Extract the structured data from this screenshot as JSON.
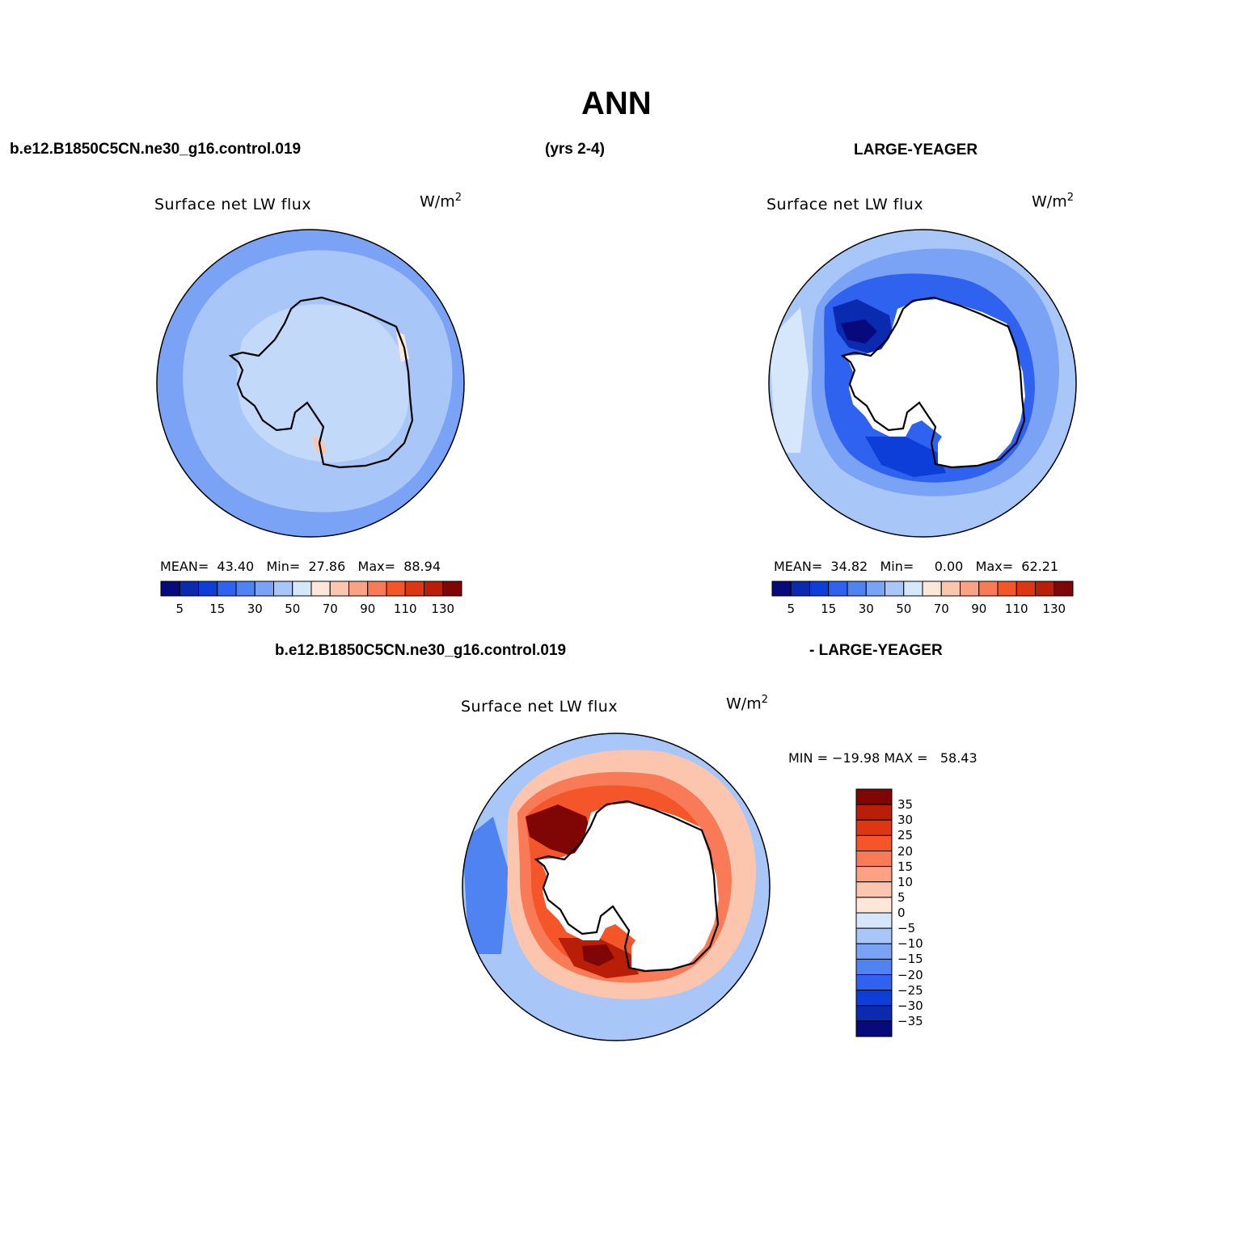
{
  "page": {
    "title": "ANN",
    "case_name": "b.e12.B1850C5CN.ne30_g16.control.019",
    "years": "(yrs 2-4)",
    "obs_name": "LARGE-YEAGER",
    "diff_case": "b.e12.B1850C5CN.ne30_g16.control.019",
    "diff_obs": "- LARGE-YEAGER"
  },
  "palette": {
    "abs": [
      "#08097a",
      "#0a2ab0",
      "#0d3fd8",
      "#2f62ee",
      "#4f83f2",
      "#7aa2f5",
      "#a9c6f8",
      "#d6e6fb",
      "#fde7d8",
      "#fcc6ae",
      "#fba285",
      "#f87a57",
      "#f4562a",
      "#dc3712",
      "#b81e08",
      "#800606"
    ],
    "diff": [
      "#800606",
      "#b81e08",
      "#dc3712",
      "#f4562a",
      "#f87a57",
      "#fba285",
      "#fcc6ae",
      "#fde7d8",
      "#d6e6fb",
      "#a9c6f8",
      "#7aa2f5",
      "#4f83f2",
      "#2f62ee",
      "#0d3fd8",
      "#0a2ab0",
      "#08097a"
    ]
  },
  "panels": {
    "model": {
      "title": "Surface net LW flux",
      "units": "W/m",
      "units_sup": "2",
      "stats": {
        "mean_label": "MEAN=",
        "mean": "43.40",
        "min_label": "Min=",
        "min": "27.86",
        "max_label": "Max=",
        "max": "88.94"
      },
      "colorbar_labels": [
        "5",
        "15",
        "30",
        "50",
        "70",
        "90",
        "110",
        "130"
      ]
    },
    "obs": {
      "title": "Surface net LW flux",
      "units": "W/m",
      "units_sup": "2",
      "stats": {
        "mean_label": "MEAN=",
        "mean": "34.82",
        "min_label": "Min=",
        "min": "0.00",
        "max_label": "Max=",
        "max": "62.21"
      },
      "colorbar_labels": [
        "5",
        "15",
        "30",
        "50",
        "70",
        "90",
        "110",
        "130"
      ]
    },
    "diff": {
      "title": "Surface net LW flux",
      "units": "W/m",
      "units_sup": "2",
      "minmax": "MIN = −19.98 MAX =   58.43",
      "colorbar_labels": [
        "35",
        "30",
        "25",
        "20",
        "15",
        "10",
        "5",
        "0",
        "−5",
        "−10",
        "−15",
        "−20",
        "−25",
        "−30",
        "−35"
      ]
    }
  }
}
